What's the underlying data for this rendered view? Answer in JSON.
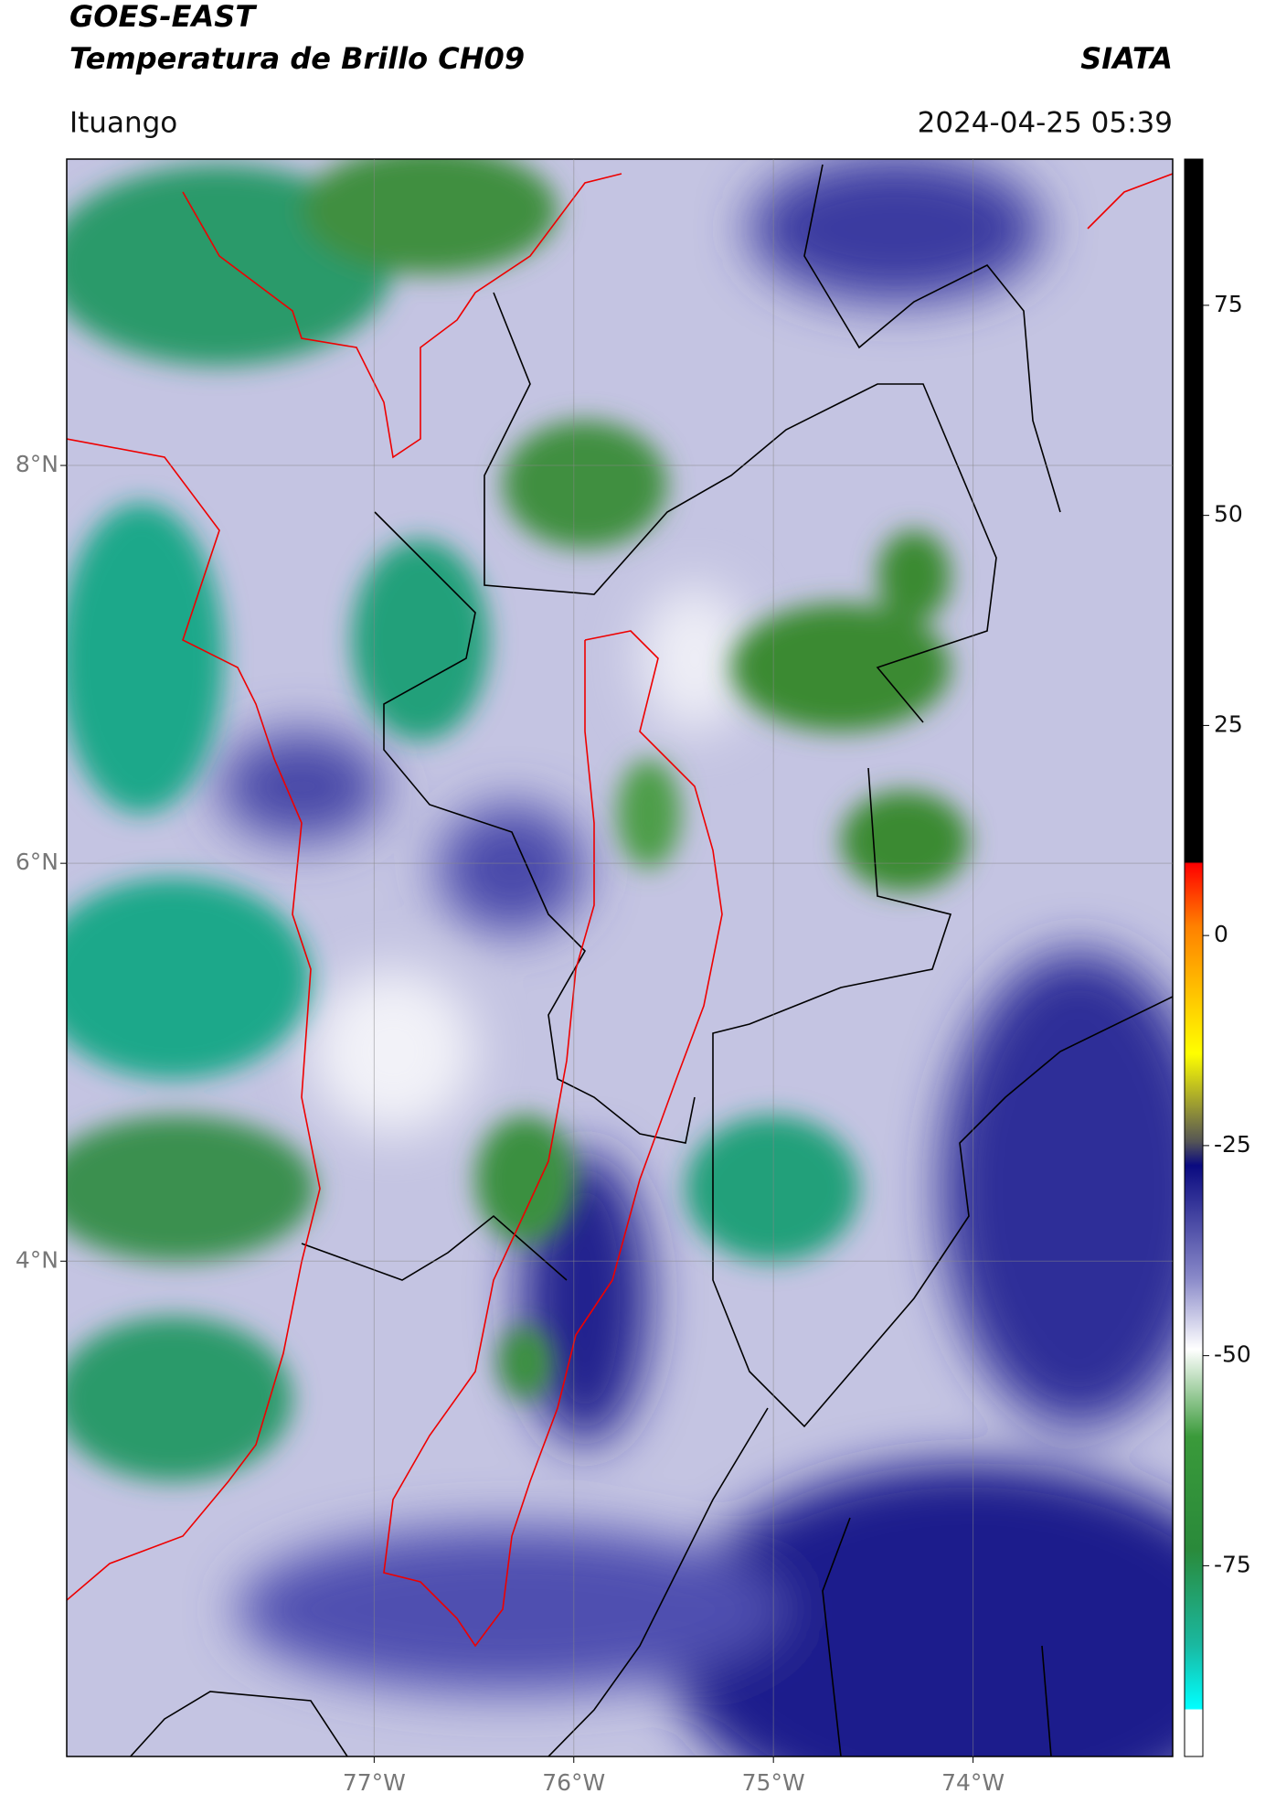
{
  "header": {
    "title": "GOES-EAST",
    "subtitle": "Temperatura de Brillo CH09",
    "source": "SIATA",
    "region": "Ituango",
    "datetime": "2024-04-25 05:39"
  },
  "chart_data": {
    "type": "map",
    "xlim": [
      -78.54,
      -73.0
    ],
    "ylim": [
      1.51,
      9.54
    ],
    "xticks": [
      {
        "value": -77,
        "label": "77°W"
      },
      {
        "value": -76,
        "label": "76°W"
      },
      {
        "value": -75,
        "label": "75°W"
      },
      {
        "value": -74,
        "label": "74°W"
      }
    ],
    "yticks": [
      {
        "value": 8,
        "label": "8°N"
      },
      {
        "value": 6,
        "label": "6°N"
      },
      {
        "value": 4,
        "label": "4°N"
      }
    ],
    "grid": true,
    "colorbar": {
      "lim": [
        -97.7,
        92.4
      ],
      "ticks": [
        75,
        50,
        25,
        0,
        -25,
        -50,
        -75
      ]
    }
  }
}
